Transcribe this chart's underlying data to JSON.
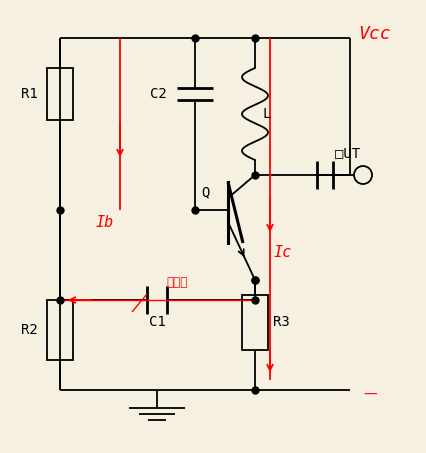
{
  "bg_color": "#f5f0e0",
  "line_color": "#000000",
  "red_color": "#ff0000",
  "title_vcc": "Vcc",
  "label_r1": "R1",
  "label_r2": "R2",
  "label_r3": "R3",
  "label_c1": "C1",
  "label_c2": "C2",
  "label_l": "L",
  "label_q": "Q",
  "label_ib": "Ib",
  "label_ic": "Ic",
  "label_out": "□UT",
  "label_feedback": "正反馈",
  "figsize": [
    4.26,
    4.53
  ],
  "dpi": 100
}
